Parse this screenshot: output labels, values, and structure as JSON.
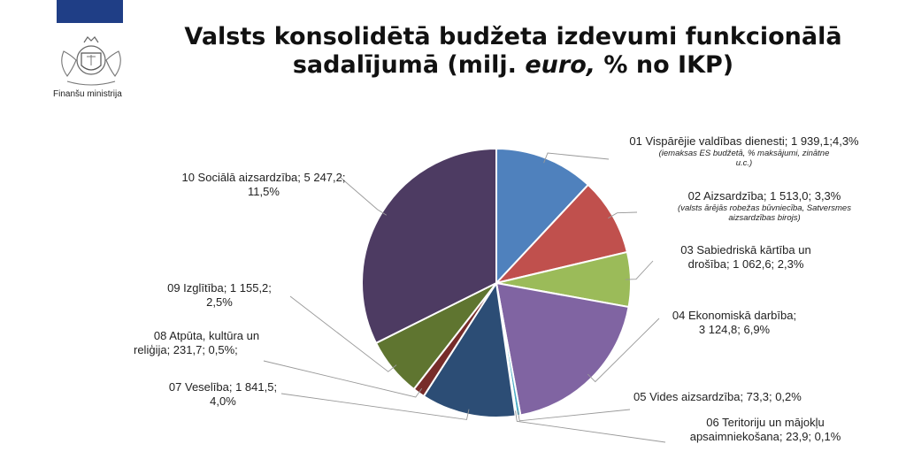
{
  "header": {
    "ministry": "Finanšu ministrija",
    "title_line1": "Valsts konsolidētā budžeta izdevumi funkcionālā",
    "title_line2_a": "sadalījumā (milj. ",
    "title_line2_italic": "euro,",
    "title_line2_b": "  % no IKP)"
  },
  "chart_data": {
    "type": "pie",
    "title": "Valsts konsolidētā budžeta izdevumi funkcionālā sadalījumā (milj. euro,  % no IKP)",
    "categories": [
      "01 Vispārējie valdības dienesti",
      "02 Aizsardzība",
      "03 Sabiedriskā kārtība un drošība",
      "04 Ekonomiskā darbība",
      "05 Vides aizsardzība",
      "06 Teritoriju un mājokļu apsaimniekošana",
      "07 Veselība",
      "08 Atpūta, kultūra un reliģija",
      "09 Izglītība",
      "10 Sociālā aizsardzība"
    ],
    "values": [
      1939.1,
      1513.0,
      1062.6,
      3124.8,
      73.3,
      23.9,
      1841.5,
      231.7,
      1155.2,
      5247.2
    ],
    "pct_gdp": [
      4.3,
      3.3,
      2.3,
      6.9,
      0.2,
      0.1,
      4.0,
      0.5,
      2.5,
      11.5
    ],
    "colors": [
      "#4f81bd",
      "#c0504d",
      "#9bbb59",
      "#8064a2",
      "#4bacc6",
      "#f79646",
      "#2c4d75",
      "#772c2a",
      "#5f7530",
      "#4d3b62"
    ],
    "labels": {
      "s01": "01 Vispārējie valdības dienesti; 1 939,1;4,3%",
      "s01_note1": "(iemaksas ES budžetā, % maksājumi, zinātne",
      "s01_note2": "u.c.)",
      "s02": "02 Aizsardzība; 1 513,0;  3,3%",
      "s02_note1": "(valsts ārējās robežas būvniecība, Satversmes",
      "s02_note2": "aizsardzības birojs)",
      "s03_1": "03 Sabiedriskā kārtība un",
      "s03_2": "drošība; 1 062,6; 2,3%",
      "s04_1": "04 Ekonomiskā darbība;",
      "s04_2": "3 124,8; 6,9%",
      "s05": "05 Vides aizsardzība;  73,3; 0,2%",
      "s06_1": "06 Teritoriju un mājokļu",
      "s06_2": "apsaimniekošana;  23,9;  0,1%",
      "s07_1": "07 Veselība; 1 841,5;",
      "s07_2": "4,0%",
      "s08_1": "08 Atpūta, kultūra un",
      "s08_2": "reliģija;  231,7; 0,5%;",
      "s09_1": "09 Izglītība; 1 155,2;",
      "s09_2": "2,5%",
      "s10_1": "10 Sociālā aizsardzība; 5 247,2;",
      "s10_2": "11,5%"
    }
  }
}
